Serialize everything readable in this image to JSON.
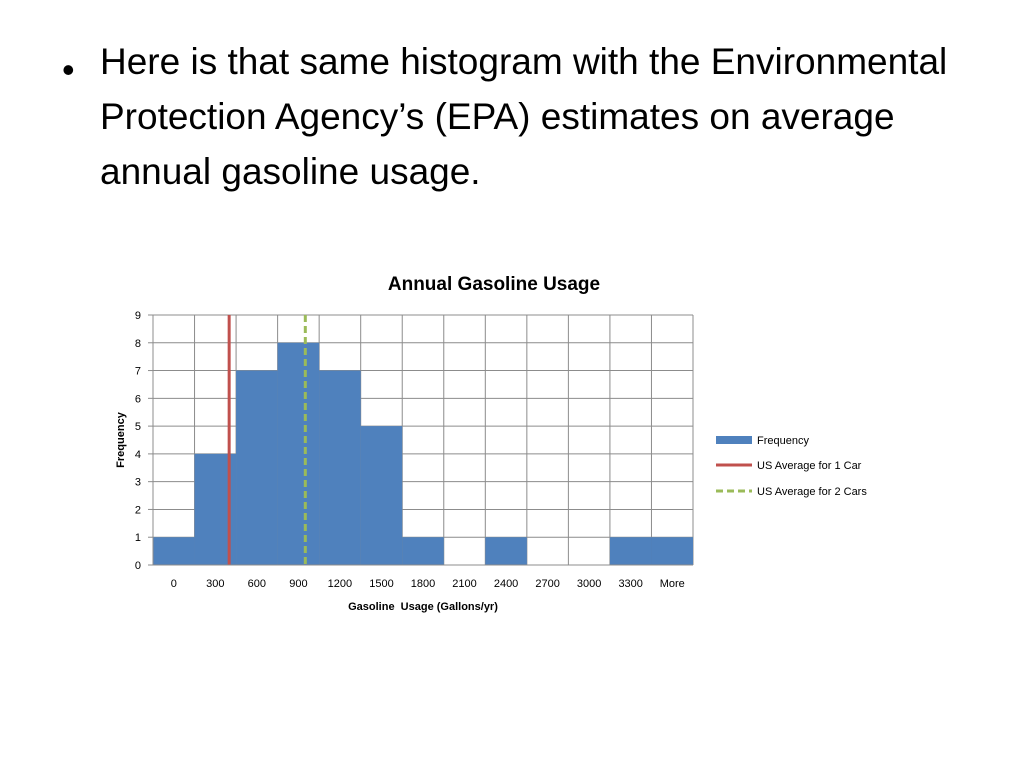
{
  "slide": {
    "bullet_symbol": "•",
    "bullet_text": "Here is that same histogram with the Environmental Protection Agency’s (EPA) estimates on average annual gasoline usage."
  },
  "chart_data": {
    "type": "bar",
    "title": "Annual Gasoline Usage",
    "xlabel": "Gasoline  Usage (Gallons/yr)",
    "ylabel": "Frequency",
    "categories": [
      "0",
      "300",
      "600",
      "900",
      "1200",
      "1500",
      "1800",
      "2100",
      "2400",
      "2700",
      "3000",
      "3300",
      "More"
    ],
    "series": [
      {
        "name": "Frequency",
        "color": "#4f81bd",
        "values": [
          1,
          4,
          7,
          8,
          7,
          5,
          1,
          0,
          1,
          0,
          0,
          1,
          1
        ]
      }
    ],
    "reference_lines": [
      {
        "name": "US Average for 1 Car",
        "x": 550,
        "color": "#c0504d",
        "style": "solid"
      },
      {
        "name": "US Average for 2 Cars",
        "x": 1100,
        "color": "#9bbb59",
        "style": "dashed"
      }
    ],
    "ylim": [
      0,
      9
    ],
    "yticks": [
      0,
      1,
      2,
      3,
      4,
      5,
      6,
      7,
      8,
      9
    ],
    "grid": true,
    "legend_position": "right"
  }
}
